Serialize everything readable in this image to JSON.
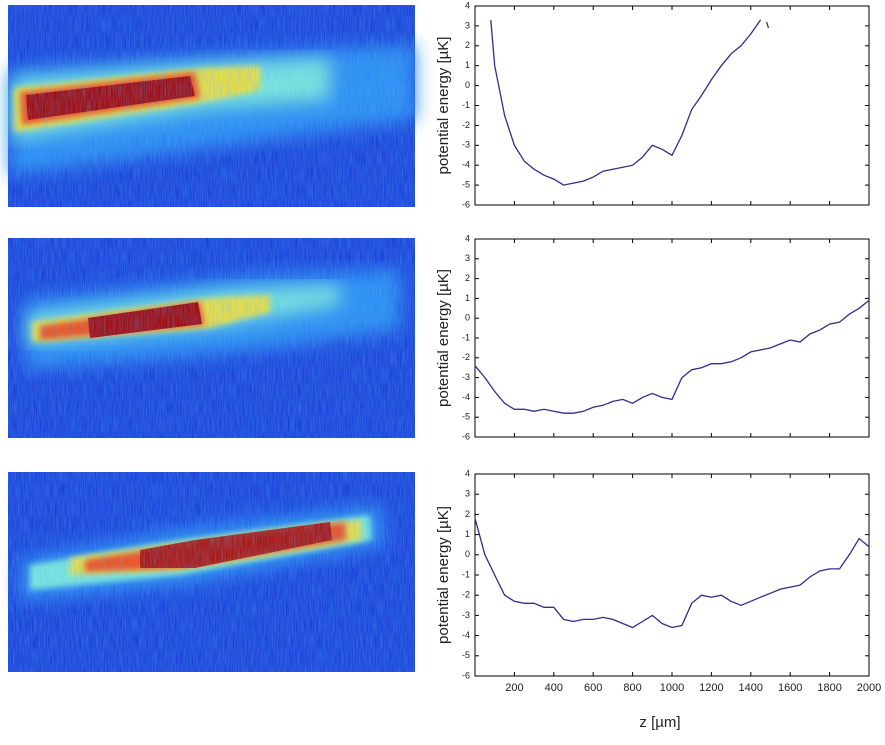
{
  "chart_data": [
    {
      "type": "line",
      "ylabel": "potential energy [µK]",
      "xlim": [
        0,
        2000
      ],
      "ylim": [
        -6,
        4
      ],
      "yticks": [
        -6,
        -5,
        -4,
        -3,
        -2,
        -1,
        0,
        1,
        2,
        3,
        4
      ],
      "x": [
        80,
        100,
        150,
        200,
        250,
        300,
        350,
        400,
        450,
        500,
        550,
        600,
        650,
        700,
        750,
        800,
        850,
        900,
        950,
        1000,
        1050,
        1100,
        1150,
        1200,
        1250,
        1300,
        1350,
        1400,
        1450,
        1465,
        1480,
        1490
      ],
      "series": [
        {
          "color": "#2e2e8c",
          "values": [
            3.3,
            1.0,
            -1.5,
            -3.0,
            -3.8,
            -4.2,
            -4.5,
            -4.7,
            -5.0,
            -4.9,
            -4.8,
            -4.6,
            -4.3,
            -4.2,
            -4.1,
            -4.0,
            -3.6,
            -3.0,
            -3.2,
            -3.5,
            -2.5,
            -1.2,
            -0.5,
            0.3,
            1.0,
            1.6,
            2.0,
            2.6,
            3.3,
            null,
            3.2,
            2.9
          ]
        }
      ]
    },
    {
      "type": "line",
      "ylabel": "potential energy [µK]",
      "xlim": [
        0,
        2000
      ],
      "ylim": [
        -6,
        4
      ],
      "yticks": [
        -6,
        -5,
        -4,
        -3,
        -2,
        -1,
        0,
        1,
        2,
        3,
        4
      ],
      "x": [
        0,
        50,
        100,
        150,
        200,
        250,
        300,
        350,
        400,
        450,
        500,
        550,
        600,
        650,
        700,
        750,
        800,
        850,
        900,
        950,
        1000,
        1050,
        1100,
        1150,
        1200,
        1250,
        1300,
        1350,
        1400,
        1450,
        1500,
        1550,
        1600,
        1650,
        1700,
        1750,
        1800,
        1850,
        1900,
        1950,
        2000
      ],
      "series": [
        {
          "color": "#2e2e8c",
          "values": [
            -2.4,
            -3.0,
            -3.7,
            -4.3,
            -4.6,
            -4.6,
            -4.7,
            -4.6,
            -4.7,
            -4.8,
            -4.8,
            -4.7,
            -4.5,
            -4.4,
            -4.2,
            -4.1,
            -4.3,
            -4.0,
            -3.8,
            -4.0,
            -4.1,
            -3.0,
            -2.6,
            -2.5,
            -2.3,
            -2.3,
            -2.2,
            -2.0,
            -1.7,
            -1.6,
            -1.5,
            -1.3,
            -1.1,
            -1.2,
            -0.8,
            -0.6,
            -0.3,
            -0.2,
            0.2,
            0.5,
            0.9
          ]
        }
      ]
    },
    {
      "type": "line",
      "ylabel": "potential energy [µK]",
      "xlabel": "z [µm]",
      "xlim": [
        0,
        2000
      ],
      "ylim": [
        -6,
        4
      ],
      "yticks": [
        -6,
        -5,
        -4,
        -3,
        -2,
        -1,
        0,
        1,
        2,
        3,
        4
      ],
      "xticks": [
        200,
        400,
        600,
        800,
        1000,
        1200,
        1400,
        1600,
        1800,
        2000
      ],
      "x": [
        0,
        50,
        100,
        150,
        200,
        250,
        300,
        350,
        400,
        450,
        500,
        550,
        600,
        650,
        700,
        750,
        800,
        850,
        900,
        950,
        1000,
        1050,
        1100,
        1150,
        1200,
        1250,
        1300,
        1350,
        1400,
        1450,
        1500,
        1550,
        1600,
        1650,
        1700,
        1750,
        1800,
        1850,
        1900,
        1950,
        2000
      ],
      "series": [
        {
          "color": "#2e2e8c",
          "values": [
            1.8,
            0.0,
            -1.0,
            -2.0,
            -2.3,
            -2.4,
            -2.4,
            -2.6,
            -2.6,
            -3.2,
            -3.3,
            -3.2,
            -3.2,
            -3.1,
            -3.2,
            -3.4,
            -3.6,
            -3.3,
            -3.0,
            -3.4,
            -3.6,
            -3.5,
            -2.4,
            -2.0,
            -2.1,
            -2.0,
            -2.3,
            -2.5,
            -2.3,
            -2.1,
            -1.9,
            -1.7,
            -1.6,
            -1.5,
            -1.1,
            -0.8,
            -0.7,
            -0.7,
            0.0,
            0.8,
            0.4
          ]
        }
      ]
    }
  ]
}
